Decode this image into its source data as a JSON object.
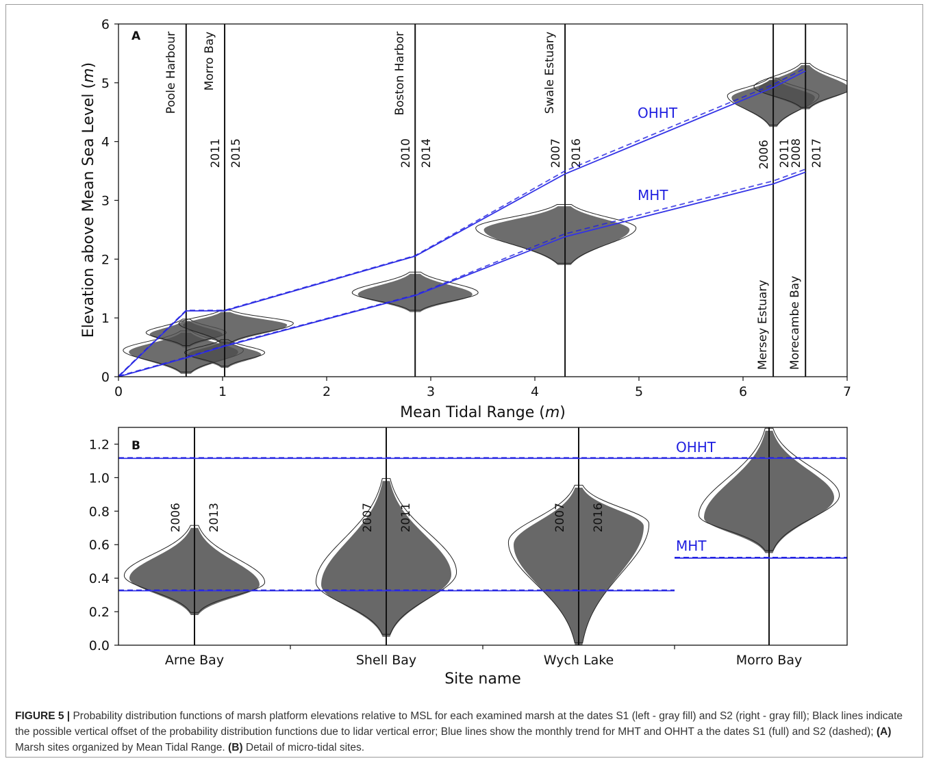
{
  "chart_data": [
    {
      "type": "violin",
      "panel": "A",
      "xlabel": "Mean Tidal Range (m)",
      "ylabel": "Elevation above Mean Sea Level (m)",
      "xlim": [
        0,
        7
      ],
      "ylim": [
        0,
        6
      ],
      "xticks": [
        "0",
        "1",
        "2",
        "3",
        "4",
        "5",
        "6",
        "7"
      ],
      "yticks": [
        "0",
        "1",
        "2",
        "3",
        "4",
        "5",
        "6"
      ],
      "sites": [
        {
          "name": "Poole Harbour",
          "x": 0.65,
          "date_left": "",
          "date_right": ""
        },
        {
          "name": "Morro Bay",
          "x": 1.02,
          "date_left": "2011",
          "date_right": "2015"
        },
        {
          "name": "Boston Harbor",
          "x": 2.85,
          "date_left": "2010",
          "date_right": "2014"
        },
        {
          "name": "Swale Estuary",
          "x": 4.29,
          "date_left": "2007",
          "date_right": "2016"
        },
        {
          "name": "Mersey Estuary",
          "x": 6.29,
          "date_left": "2006",
          "date_right": "2011"
        },
        {
          "name": "Morecambe Bay",
          "x": 6.6,
          "date_left": "2008",
          "date_right": "2017"
        }
      ],
      "violins": [
        {
          "x": 0.65,
          "mode": 0.42,
          "low": 0.05,
          "high": 0.75,
          "left": 0.55,
          "right": 0.5
        },
        {
          "x": 0.65,
          "mode": 0.72,
          "low": 0.5,
          "high": 0.95,
          "left": 0.35,
          "right": 0.35
        },
        {
          "x": 1.02,
          "mode": 0.88,
          "low": 0.55,
          "high": 1.1,
          "left": 0.4,
          "right": 0.6
        },
        {
          "x": 1.02,
          "mode": 0.38,
          "low": 0.15,
          "high": 0.6,
          "left": 0.35,
          "right": 0.35
        },
        {
          "x": 2.85,
          "mode": 1.4,
          "low": 1.1,
          "high": 1.75,
          "left": 0.55,
          "right": 0.55
        },
        {
          "x": 4.29,
          "mode": 2.5,
          "low": 1.9,
          "high": 2.9,
          "left": 0.78,
          "right": 0.62
        },
        {
          "x": 6.29,
          "mode": 4.75,
          "low": 4.25,
          "high": 5.05,
          "left": 0.4,
          "right": 0.4
        },
        {
          "x": 6.6,
          "mode": 4.9,
          "low": 4.55,
          "high": 5.3,
          "left": 0.45,
          "right": 0.42
        }
      ],
      "series": [
        {
          "name": "OHHT",
          "style": "S1 full / S2 dashed",
          "x": [
            0,
            0.65,
            1.02,
            2.85,
            4.29,
            6.29,
            6.6
          ],
          "y": [
            0,
            1.12,
            1.12,
            2.05,
            3.45,
            4.92,
            5.2
          ]
        },
        {
          "name": "MHT",
          "style": "S1 full / S2 dashed",
          "x": [
            0,
            0.65,
            1.02,
            2.85,
            4.29,
            6.29,
            6.6
          ],
          "y": [
            0,
            0.32,
            0.52,
            1.38,
            2.38,
            3.28,
            3.48
          ]
        }
      ],
      "labels": {
        "panel": "A",
        "ohht": "OHHT",
        "mht": "MHT"
      }
    },
    {
      "type": "violin",
      "panel": "B",
      "xlabel": "Site name",
      "ylabel": "",
      "ylim": [
        0,
        1.3
      ],
      "yticks": [
        "0.0",
        "0.2",
        "0.4",
        "0.6",
        "0.8",
        "1.0",
        "1.2"
      ],
      "categories": [
        "Arne Bay",
        "Shell Bay",
        "Wych Lake",
        "Morro Bay"
      ],
      "dates": [
        {
          "left": "2006",
          "right": "2013"
        },
        {
          "left": "2007",
          "right": "2011"
        },
        {
          "left": "2007",
          "right": "2016"
        },
        {
          "left": "",
          "right": ""
        }
      ],
      "violins": [
        {
          "site": "Arne Bay",
          "mode_left": 0.4,
          "mode_right": 0.36,
          "low": 0.18,
          "high": 0.7
        },
        {
          "site": "Shell Bay",
          "mode_left": 0.36,
          "mode_right": 0.42,
          "low": 0.05,
          "high": 0.98
        },
        {
          "site": "Wych Lake",
          "mode_left": 0.6,
          "mode_right": 0.71,
          "low": 0.0,
          "high": 0.94
        },
        {
          "site": "Morro Bay",
          "mode_left": 0.76,
          "mode_right": 0.88,
          "low": 0.55,
          "high": 1.28
        }
      ],
      "series": [
        {
          "name": "OHHT",
          "value": 1.115
        },
        {
          "name": "MHT",
          "value_left_sites": 0.325,
          "value_morro": 0.52
        }
      ],
      "labels": {
        "panel": "B",
        "ohht": "OHHT",
        "mht": "MHT"
      }
    }
  ],
  "caption": {
    "lead": "FIGURE 5 |",
    "text": " Probability distribution functions of marsh platform elevations relative to MSL for each examined marsh at the dates S1 (left - gray fill) and S2 (right - gray fill); Black lines indicate the possible vertical offset of the probability distribution functions due to lidar vertical error; Blue lines show the monthly trend for MHT and OHHT a the dates S1 (full) and S2 (dashed); ",
    "panel_a": "(A)",
    "text_a": " Marsh sites organized by Mean Tidal Range. ",
    "panel_b": "(B)",
    "text_b": " Detail of micro-tidal sites."
  },
  "colors": {
    "blue": "#1f1fe0",
    "violin_fill": "#4d4d4d",
    "axis": "#111111"
  }
}
